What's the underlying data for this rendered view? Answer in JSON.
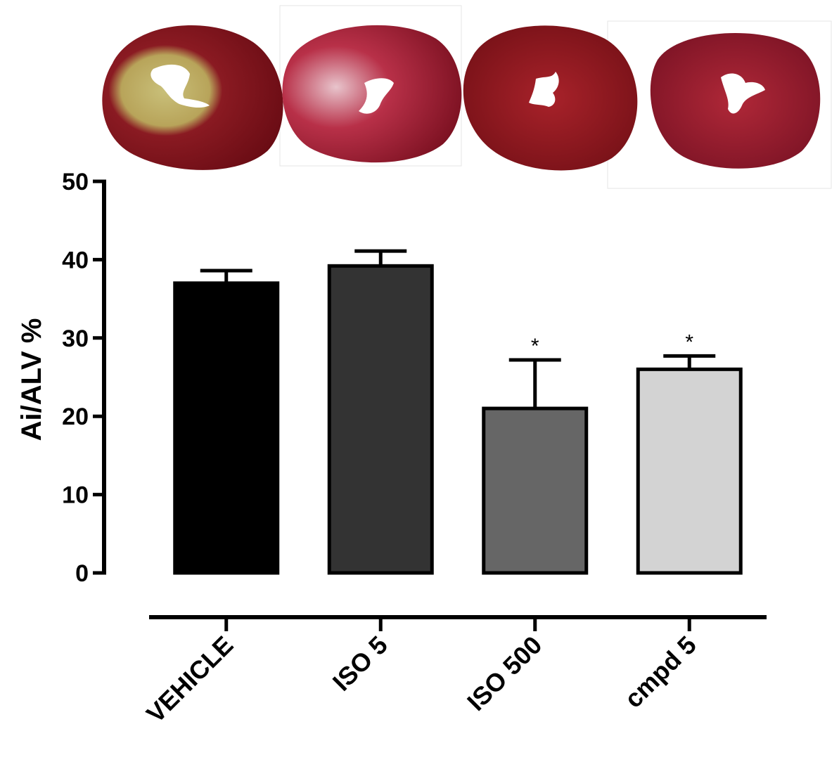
{
  "chart_data": {
    "type": "bar",
    "title": "",
    "xlabel": "",
    "ylabel": "Ai/ALV %",
    "ylim": [
      0,
      50
    ],
    "yticks": [
      0,
      10,
      20,
      30,
      40,
      50
    ],
    "grid": false,
    "categories": [
      "VEHICLE",
      "ISO 5",
      "ISO 500",
      "cmpd 5"
    ],
    "values": [
      37,
      39.2,
      21,
      26
    ],
    "errors": [
      1.6,
      1.9,
      6.2,
      1.7
    ],
    "significance": [
      "",
      "",
      "*",
      "*"
    ],
    "colors": [
      "#000000",
      "#333333",
      "#666666",
      "#d3d3d3"
    ]
  },
  "images": {
    "heart_sections": [
      {
        "name": "vehicle-heart-section"
      },
      {
        "name": "iso5-heart-section"
      },
      {
        "name": "iso500-heart-section"
      },
      {
        "name": "cmpd5-heart-section"
      }
    ]
  }
}
